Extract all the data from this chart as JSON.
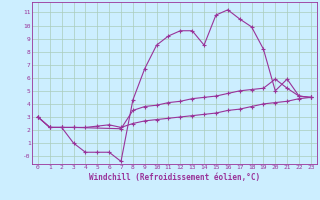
{
  "background_color": "#cceeff",
  "grid_color": "#aaccbb",
  "line_color": "#993399",
  "marker": "+",
  "markersize": 3,
  "linewidth": 0.8,
  "xlabel": "Windchill (Refroidissement éolien,°C)",
  "xlabel_fontsize": 5.5,
  "tick_fontsize": 4.5,
  "xticks": [
    0,
    1,
    2,
    3,
    4,
    5,
    6,
    7,
    8,
    9,
    10,
    11,
    12,
    13,
    14,
    15,
    16,
    17,
    18,
    19,
    20,
    21,
    22,
    23
  ],
  "ytick_labels": [
    "-0",
    "1",
    "2",
    "3",
    "4",
    "5",
    "6",
    "7",
    "8",
    "9",
    "10",
    "11"
  ],
  "ytick_vals": [
    0,
    1,
    2,
    3,
    4,
    5,
    6,
    7,
    8,
    9,
    10,
    11
  ],
  "ylim": [
    -0.6,
    11.8
  ],
  "xlim": [
    -0.5,
    23.5
  ],
  "line1_x": [
    0,
    1,
    2,
    3,
    4,
    5,
    6,
    7,
    8,
    9,
    10,
    11,
    12,
    13,
    14,
    15,
    16,
    17,
    18,
    19,
    20,
    21,
    22,
    23
  ],
  "line1_y": [
    3.0,
    2.2,
    2.2,
    1.0,
    0.3,
    0.3,
    0.3,
    -0.4,
    4.3,
    6.7,
    8.5,
    9.2,
    9.6,
    9.6,
    8.5,
    10.8,
    11.2,
    10.5,
    9.9,
    8.2,
    5.0,
    5.9,
    4.6,
    4.5
  ],
  "line2_x": [
    0,
    1,
    2,
    3,
    7,
    8,
    9,
    10,
    11,
    12,
    13,
    14,
    15,
    16,
    17,
    18,
    19,
    20,
    21,
    22,
    23
  ],
  "line2_y": [
    3.0,
    2.2,
    2.2,
    2.2,
    2.1,
    3.5,
    3.8,
    3.9,
    4.1,
    4.2,
    4.4,
    4.5,
    4.6,
    4.8,
    5.0,
    5.1,
    5.2,
    5.9,
    5.2,
    4.6,
    4.5
  ],
  "line3_x": [
    0,
    1,
    2,
    3,
    4,
    5,
    6,
    7,
    8,
    9,
    10,
    11,
    12,
    13,
    14,
    15,
    16,
    17,
    18,
    19,
    20,
    21,
    22,
    23
  ],
  "line3_y": [
    3.0,
    2.2,
    2.2,
    2.2,
    2.2,
    2.3,
    2.4,
    2.2,
    2.5,
    2.7,
    2.8,
    2.9,
    3.0,
    3.1,
    3.2,
    3.3,
    3.5,
    3.6,
    3.8,
    4.0,
    4.1,
    4.2,
    4.4,
    4.5
  ]
}
